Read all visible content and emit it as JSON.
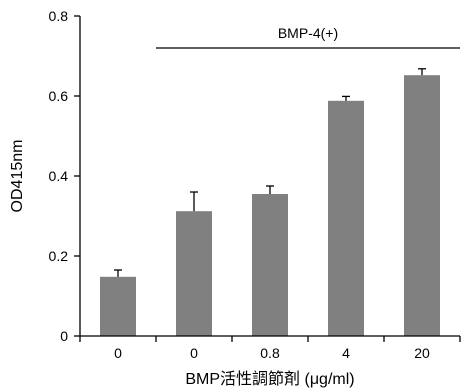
{
  "chart_data": {
    "type": "bar",
    "categories": [
      "0",
      "0",
      "0.8",
      "4",
      "20"
    ],
    "values": [
      0.148,
      0.312,
      0.355,
      0.588,
      0.652
    ],
    "errors": [
      0.017,
      0.048,
      0.02,
      0.011,
      0.016
    ],
    "xlabel": "BMP活性調節剤 (μg/ml)",
    "ylabel": "OD415nm",
    "ylim": [
      0,
      0.8
    ],
    "yticks": [
      "0",
      "0.2",
      "0.4",
      "0.6",
      "0.8"
    ],
    "grid": false,
    "bar_color": "#808080",
    "annotation": {
      "text": "BMP-4(+)",
      "spans_categories": [
        1,
        4
      ]
    }
  }
}
